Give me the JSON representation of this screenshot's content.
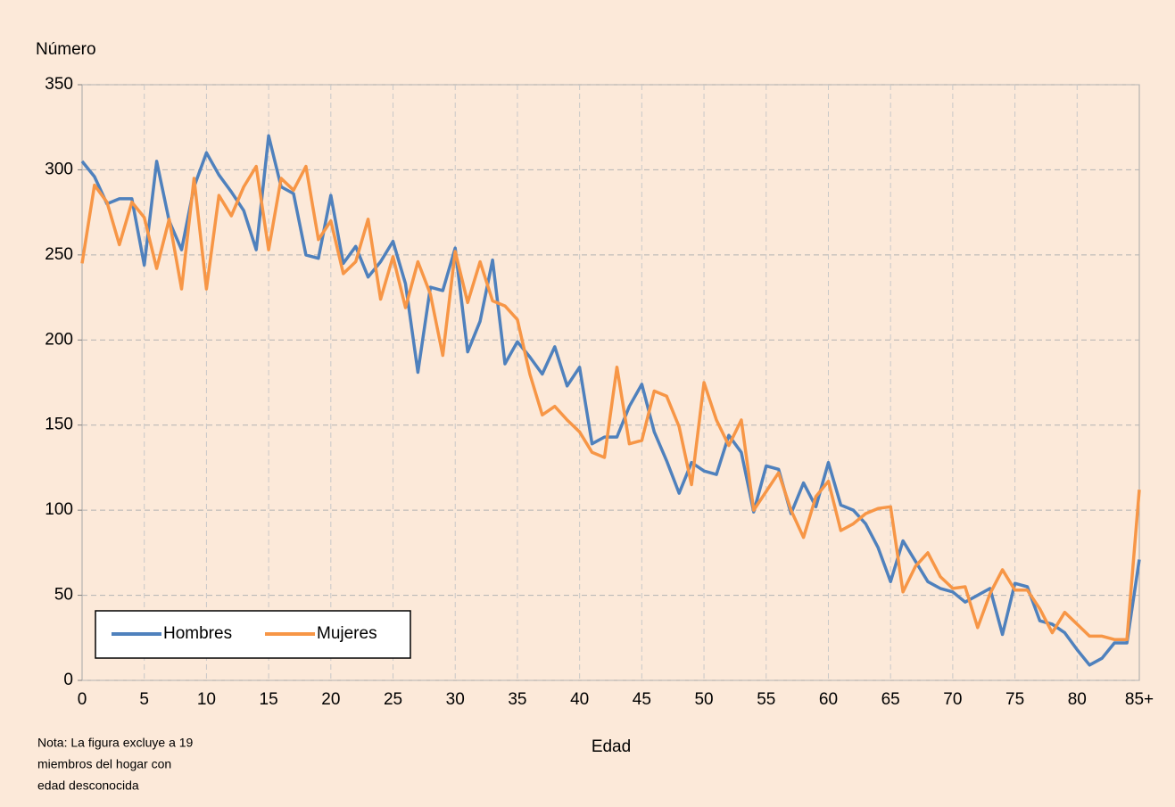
{
  "chart_data": {
    "type": "line",
    "ylabel": "Número",
    "xlabel": "Edad",
    "note": [
      "Nota: La figura excluye a 19",
      "miembros  del hogar con",
      "edad  desconocida"
    ],
    "categories": [
      "0",
      null,
      null,
      null,
      null,
      "5",
      null,
      null,
      null,
      null,
      "10",
      null,
      null,
      null,
      null,
      "15",
      null,
      null,
      null,
      null,
      "20",
      null,
      null,
      null,
      null,
      "25",
      null,
      null,
      null,
      null,
      "30",
      null,
      null,
      null,
      null,
      "35",
      null,
      null,
      null,
      null,
      "40",
      null,
      null,
      null,
      null,
      "45",
      null,
      null,
      null,
      null,
      "50",
      null,
      null,
      null,
      null,
      "55",
      null,
      null,
      null,
      null,
      "60",
      null,
      null,
      null,
      null,
      "65",
      null,
      null,
      null,
      null,
      "70",
      null,
      null,
      null,
      null,
      "75",
      null,
      null,
      null,
      null,
      "80",
      null,
      null,
      null,
      null,
      "85+"
    ],
    "series": [
      {
        "name": "Hombres",
        "color": "#4f81bd",
        "values": [
          305,
          296,
          280,
          283,
          283,
          244,
          305,
          270,
          253,
          290,
          310,
          297,
          287,
          276,
          253,
          320,
          290,
          286,
          250,
          248,
          285,
          245,
          255,
          237,
          246,
          258,
          233,
          181,
          231,
          229,
          254,
          193,
          211,
          247,
          186,
          199,
          190,
          180,
          196,
          173,
          184,
          139,
          143,
          143,
          161,
          174,
          146,
          129,
          110,
          128,
          123,
          121,
          144,
          134,
          99,
          126,
          124,
          98,
          116,
          102,
          128,
          103,
          100,
          92,
          78,
          58,
          82,
          70,
          58,
          54,
          52,
          46,
          50,
          54,
          27,
          57,
          55,
          35,
          33,
          28,
          18,
          9,
          13,
          22,
          22,
          71
        ]
      },
      {
        "name": "Mujeres",
        "color": "#f79646",
        "values": [
          245,
          291,
          281,
          256,
          281,
          272,
          242,
          271,
          230,
          295,
          230,
          285,
          273,
          290,
          302,
          253,
          295,
          288,
          302,
          259,
          270,
          239,
          246,
          271,
          224,
          249,
          219,
          246,
          227,
          191,
          252,
          222,
          246,
          223,
          220,
          212,
          180,
          156,
          161,
          153,
          146,
          134,
          131,
          184,
          139,
          141,
          170,
          167,
          149,
          115,
          175,
          153,
          138,
          153,
          100,
          111,
          122,
          100,
          84,
          108,
          117,
          88,
          92,
          98,
          101,
          102,
          52,
          67,
          75,
          61,
          54,
          55,
          31,
          51,
          65,
          53,
          53,
          42,
          28,
          40,
          33,
          26,
          26,
          24,
          24,
          112
        ]
      }
    ],
    "ylim": [
      0,
      350
    ],
    "yticks": [
      0,
      50,
      100,
      150,
      200,
      250,
      300,
      350
    ],
    "grid": true,
    "legend": "lower left"
  }
}
